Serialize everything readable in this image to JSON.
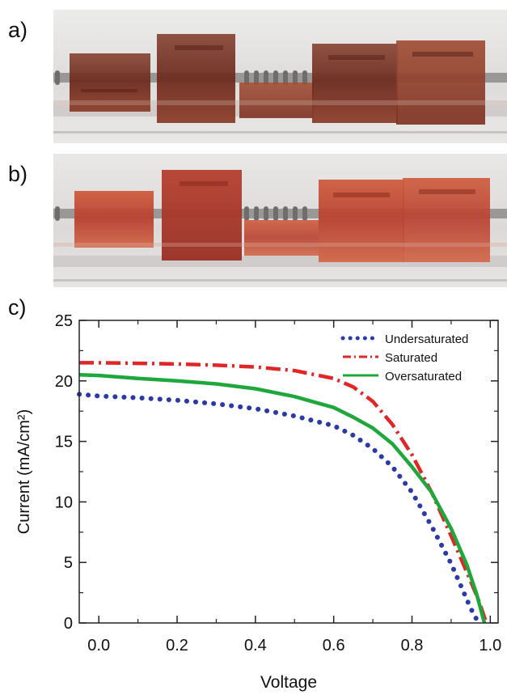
{
  "panels": {
    "a_label": "a)",
    "b_label": "b)",
    "c_label": "c)"
  },
  "photos": {
    "a": {
      "description_icon": "photo-of-dyed-solar-cells-undersaturated",
      "tint": "#7a3526",
      "background": "#e9e7e6"
    },
    "b": {
      "description_icon": "photo-of-dyed-solar-cells-saturated",
      "tint": "#b5452e",
      "background": "#e6e4e3"
    }
  },
  "chart_data": {
    "type": "line",
    "xlabel": "Voltage",
    "ylabel": "Current (mA/cm²)",
    "xlim": [
      -0.05,
      1.02
    ],
    "ylim": [
      0,
      25
    ],
    "x_ticks": [
      0.0,
      0.2,
      0.4,
      0.6,
      0.8,
      1.0
    ],
    "x_tick_labels": [
      "0.0",
      "0.2",
      "0.4",
      "0.6",
      "0.8",
      "1.0"
    ],
    "y_ticks": [
      0,
      5,
      10,
      15,
      20,
      25
    ],
    "y_tick_labels": [
      "0",
      "5",
      "10",
      "15",
      "20",
      "25"
    ],
    "grid": false,
    "legend_position": "top-right",
    "series": [
      {
        "name": "Undersaturated",
        "color": "#2b3aa6",
        "style": "dotted",
        "x": [
          -0.05,
          0.0,
          0.1,
          0.2,
          0.3,
          0.4,
          0.5,
          0.6,
          0.65,
          0.7,
          0.75,
          0.8,
          0.85,
          0.9,
          0.93,
          0.95,
          0.97
        ],
        "y": [
          18.9,
          18.75,
          18.6,
          18.4,
          18.1,
          17.7,
          17.1,
          16.3,
          15.5,
          14.4,
          12.9,
          10.8,
          8.0,
          4.9,
          2.7,
          1.2,
          0.0
        ]
      },
      {
        "name": "Saturated",
        "color": "#e02626",
        "style": "dashdot",
        "x": [
          -0.05,
          0.0,
          0.1,
          0.2,
          0.3,
          0.4,
          0.5,
          0.6,
          0.65,
          0.7,
          0.75,
          0.8,
          0.85,
          0.9,
          0.94,
          0.97,
          0.99
        ],
        "y": [
          21.5,
          21.5,
          21.45,
          21.4,
          21.3,
          21.15,
          20.85,
          20.2,
          19.5,
          18.3,
          16.4,
          13.9,
          10.8,
          7.2,
          4.2,
          1.9,
          0.0
        ]
      },
      {
        "name": "Oversaturated",
        "color": "#1ea83c",
        "style": "solid",
        "x": [
          -0.05,
          0.0,
          0.1,
          0.2,
          0.3,
          0.4,
          0.5,
          0.6,
          0.65,
          0.7,
          0.75,
          0.8,
          0.85,
          0.9,
          0.94,
          0.965,
          0.985
        ],
        "y": [
          20.5,
          20.45,
          20.2,
          20.0,
          19.75,
          19.35,
          18.7,
          17.8,
          17.0,
          16.1,
          14.8,
          12.9,
          10.8,
          7.8,
          4.8,
          2.4,
          0.0
        ]
      }
    ]
  }
}
